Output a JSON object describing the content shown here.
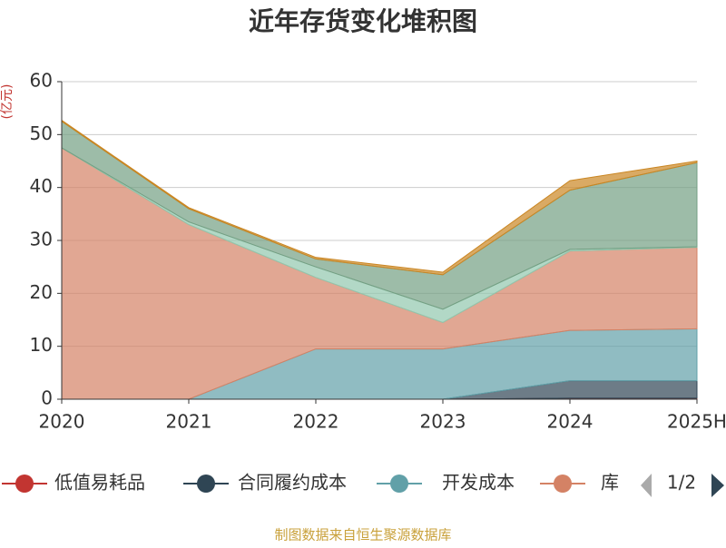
{
  "chart_data": {
    "type": "area",
    "stacked": true,
    "title": "近年存货变化堆积图",
    "y_label": "(亿元)",
    "categories": [
      "2020",
      "2021",
      "2022",
      "2023",
      "2024",
      "2025H"
    ],
    "ylim": [
      0,
      60
    ],
    "yticks": [
      0,
      10,
      20,
      30,
      40,
      50,
      60
    ],
    "grid": true,
    "series": [
      {
        "name": "低值易耗品",
        "color": "#c23531",
        "values": [
          0,
          0,
          0,
          0,
          0.2,
          0.2
        ]
      },
      {
        "name": "合同履约成本",
        "color": "#2f4554",
        "values": [
          0,
          0,
          0,
          0,
          3.3,
          3.3
        ]
      },
      {
        "name": "开发成本",
        "color": "#61a0a8",
        "values": [
          0,
          0,
          9.5,
          9.5,
          9.5,
          9.8
        ]
      },
      {
        "name": "库",
        "color": "#d48265",
        "values": [
          47.5,
          33,
          13.5,
          5,
          15,
          15.4
        ]
      },
      {
        "color": "#91c7ae",
        "values": [
          0,
          0.5,
          2,
          2.5,
          0.3,
          0.1
        ]
      },
      {
        "color": "#749f83",
        "values": [
          5,
          2.5,
          1.5,
          6.5,
          11.2,
          15.9
        ]
      },
      {
        "color": "#ca8622",
        "values": [
          0.2,
          0.2,
          0.3,
          0.5,
          1.8,
          0.3
        ]
      }
    ],
    "legend_page": "1/2",
    "source": "制图数据来自恒生聚源数据库"
  }
}
